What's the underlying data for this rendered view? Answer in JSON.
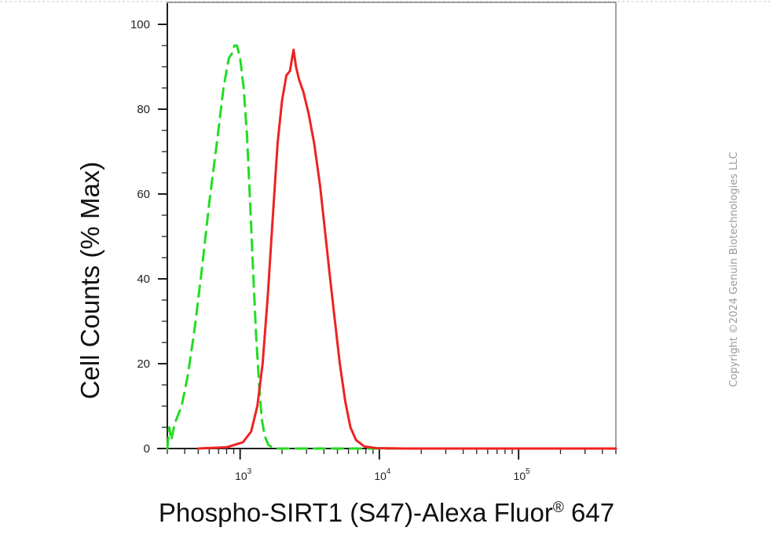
{
  "chart_data": {
    "type": "line",
    "title": "",
    "xlabel": "Phospho-SIRT1 (S47)-Alexa Fluor",
    "xlabel_superscript": "®",
    "xlabel_suffix": " 647",
    "ylabel": "Cell Counts (% Max)",
    "x_scale": "log",
    "xlim": [
      300,
      500000
    ],
    "ylim": [
      0,
      105
    ],
    "y_ticks": [
      0,
      20,
      40,
      60,
      80,
      100
    ],
    "y_tick_labels": [
      "0",
      "20",
      "40",
      "60",
      "80",
      "100"
    ],
    "x_ticks": [
      1000,
      10000,
      100000
    ],
    "x_tick_labels": [
      {
        "base": "10",
        "exp": "3"
      },
      {
        "base": "10",
        "exp": "4"
      },
      {
        "base": "10",
        "exp": "5"
      }
    ],
    "grid": false,
    "legend": "none",
    "series": [
      {
        "color": "#22dd22",
        "dash": "dashed",
        "points": [
          [
            300,
            0
          ],
          [
            310,
            5
          ],
          [
            320,
            2
          ],
          [
            340,
            6
          ],
          [
            380,
            10
          ],
          [
            420,
            17
          ],
          [
            470,
            28
          ],
          [
            530,
            42
          ],
          [
            600,
            58
          ],
          [
            680,
            72
          ],
          [
            760,
            85
          ],
          [
            830,
            92
          ],
          [
            870,
            93
          ],
          [
            910,
            95
          ],
          [
            950,
            95
          ],
          [
            1000,
            92
          ],
          [
            1060,
            85
          ],
          [
            1120,
            74
          ],
          [
            1180,
            58
          ],
          [
            1240,
            42
          ],
          [
            1300,
            27
          ],
          [
            1370,
            15
          ],
          [
            1430,
            7
          ],
          [
            1500,
            3
          ],
          [
            1600,
            0.8
          ],
          [
            1800,
            0
          ],
          [
            3000,
            0
          ],
          [
            6000,
            0
          ],
          [
            20000,
            0
          ],
          [
            100000,
            0
          ],
          [
            500000,
            0
          ]
        ]
      },
      {
        "color": "#ee2222",
        "dash": "solid",
        "points": [
          [
            500,
            0
          ],
          [
            800,
            0.3
          ],
          [
            1050,
            1.5
          ],
          [
            1200,
            4
          ],
          [
            1330,
            10
          ],
          [
            1450,
            20
          ],
          [
            1580,
            36
          ],
          [
            1720,
            55
          ],
          [
            1860,
            72
          ],
          [
            2000,
            82
          ],
          [
            2150,
            88
          ],
          [
            2280,
            89
          ],
          [
            2360,
            92
          ],
          [
            2420,
            94
          ],
          [
            2520,
            90
          ],
          [
            2650,
            87
          ],
          [
            2850,
            84
          ],
          [
            3100,
            79
          ],
          [
            3400,
            72
          ],
          [
            3750,
            62
          ],
          [
            4050,
            52
          ],
          [
            4400,
            41
          ],
          [
            4800,
            30
          ],
          [
            5200,
            20
          ],
          [
            5700,
            11
          ],
          [
            6200,
            5
          ],
          [
            6800,
            2
          ],
          [
            7800,
            0.5
          ],
          [
            9500,
            0.1
          ],
          [
            15000,
            0
          ],
          [
            100000,
            0
          ],
          [
            500000,
            0
          ]
        ]
      }
    ]
  },
  "copyright": "Copyright ©2024 Genuin Biotechnologies LLC"
}
